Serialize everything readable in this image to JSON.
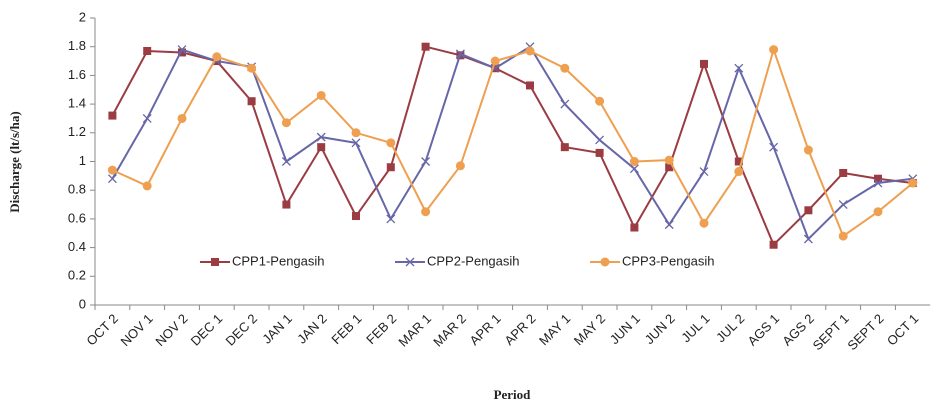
{
  "chart_data": {
    "type": "line",
    "x_label": "Period",
    "y_label": "Discharge (lt/s/ha)",
    "categories": [
      "OCT 2",
      "NOV 1",
      "NOV 2",
      "DEC 1",
      "DEC 2",
      "JAN 1",
      "JAN 2",
      "FEB 1",
      "FEB 2",
      "MAR 1",
      "MAR 2",
      "APR 1",
      "APR 2",
      "MAY 1",
      "MAY 2",
      "JUN 1",
      "JUN 2",
      "JUL 1",
      "JUL 2",
      "AGS 1",
      "AGS 2",
      "SEPT 1",
      "SEPT 2",
      "OCT 1"
    ],
    "series": [
      {
        "name": "CPP1-Pengasih",
        "color": "#9b3b42",
        "marker": "square",
        "values": [
          1.32,
          1.77,
          1.76,
          1.7,
          1.42,
          0.7,
          1.1,
          0.62,
          0.96,
          1.8,
          1.74,
          1.65,
          1.53,
          1.1,
          1.06,
          0.54,
          0.96,
          1.68,
          1.0,
          0.42,
          0.66,
          0.92,
          0.88,
          0.85
        ]
      },
      {
        "name": "CPP2-Pengasih",
        "color": "#6666a8",
        "marker": "cross",
        "values": [
          0.88,
          1.3,
          1.78,
          1.7,
          1.66,
          1.0,
          1.17,
          1.13,
          0.6,
          1.0,
          1.75,
          1.65,
          1.8,
          1.4,
          1.15,
          0.95,
          0.56,
          0.93,
          1.65,
          1.1,
          0.46,
          0.7,
          0.85,
          0.88
        ]
      },
      {
        "name": "CPP3-Pengasih",
        "color": "#eea050",
        "marker": "circle",
        "values": [
          0.94,
          0.83,
          1.3,
          1.73,
          1.65,
          1.27,
          1.46,
          1.2,
          1.13,
          0.65,
          0.97,
          1.7,
          1.77,
          1.65,
          1.42,
          1.0,
          1.01,
          0.57,
          0.93,
          1.78,
          1.08,
          0.48,
          0.65,
          0.85
        ]
      }
    ],
    "ylim": [
      0,
      2
    ],
    "yticks": [
      0,
      0.2,
      0.4,
      0.6,
      0.8,
      1,
      1.2,
      1.4,
      1.6,
      1.8,
      2
    ],
    "grid": false
  }
}
